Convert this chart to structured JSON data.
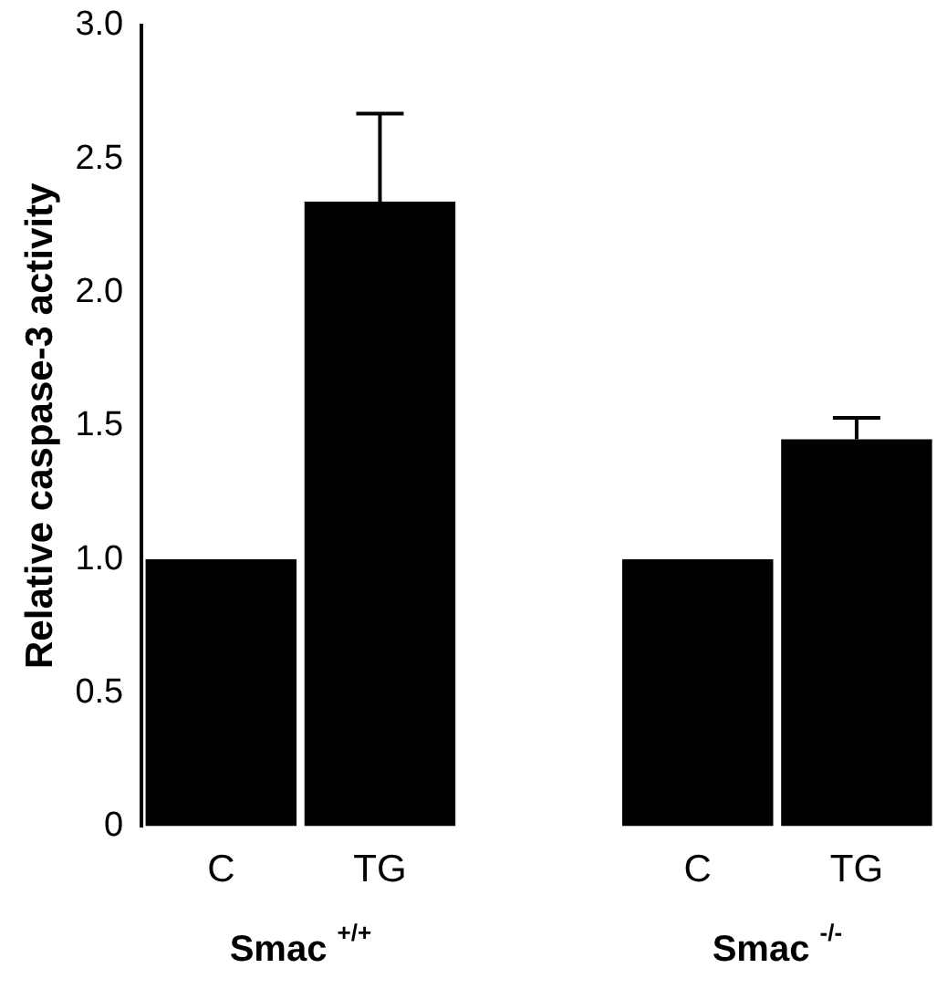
{
  "chart_data": {
    "type": "bar",
    "ylabel": "Relative caspase-3 activity",
    "categories": [
      "C",
      "TG",
      null,
      "C",
      "TG"
    ],
    "values": [
      1.0,
      2.34,
      null,
      1.0,
      1.45
    ],
    "errors": [
      null,
      [
        2.34,
        2.67
      ],
      null,
      null,
      [
        1.45,
        1.53
      ]
    ],
    "color": "#000000",
    "ylim": [
      0,
      3.0
    ],
    "yticks": [
      0,
      {
        "value": 0.5,
        "label": "0.5"
      },
      {
        "value": 1,
        "label": "1.0"
      },
      {
        "value": 1.5,
        "label": "1.5"
      },
      {
        "value": 2,
        "label": "2.0"
      },
      {
        "value": 2.5,
        "label": "2.5"
      },
      {
        "value": 3,
        "label": "3.0"
      }
    ],
    "grid": false,
    "legend": false,
    "annotations": [
      "Smac $^{+/+}$",
      "Smac $^{-/-}$"
    ]
  }
}
